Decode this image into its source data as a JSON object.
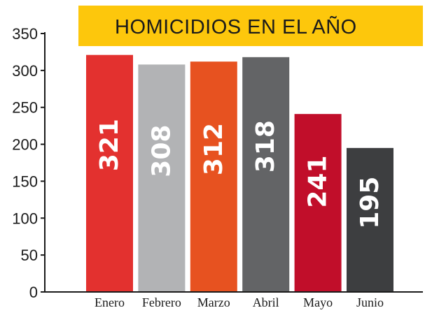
{
  "chart_data": {
    "type": "bar",
    "title": "HOMICIDIOS EN EL AÑO",
    "categories": [
      "Enero",
      "Febrero",
      "Marzo",
      "Abril",
      "Mayo",
      "Junio"
    ],
    "values": [
      321,
      308,
      312,
      318,
      241,
      195
    ],
    "ylim": [
      0,
      350
    ],
    "yticks": [
      0,
      50,
      100,
      150,
      200,
      250,
      300,
      350
    ],
    "grid": false,
    "bar_colors": [
      "#e3312f",
      "#b2b3b5",
      "#e75220",
      "#636466",
      "#c10e2a",
      "#3d3e40"
    ],
    "title_bar_color": "#fdc70c"
  }
}
